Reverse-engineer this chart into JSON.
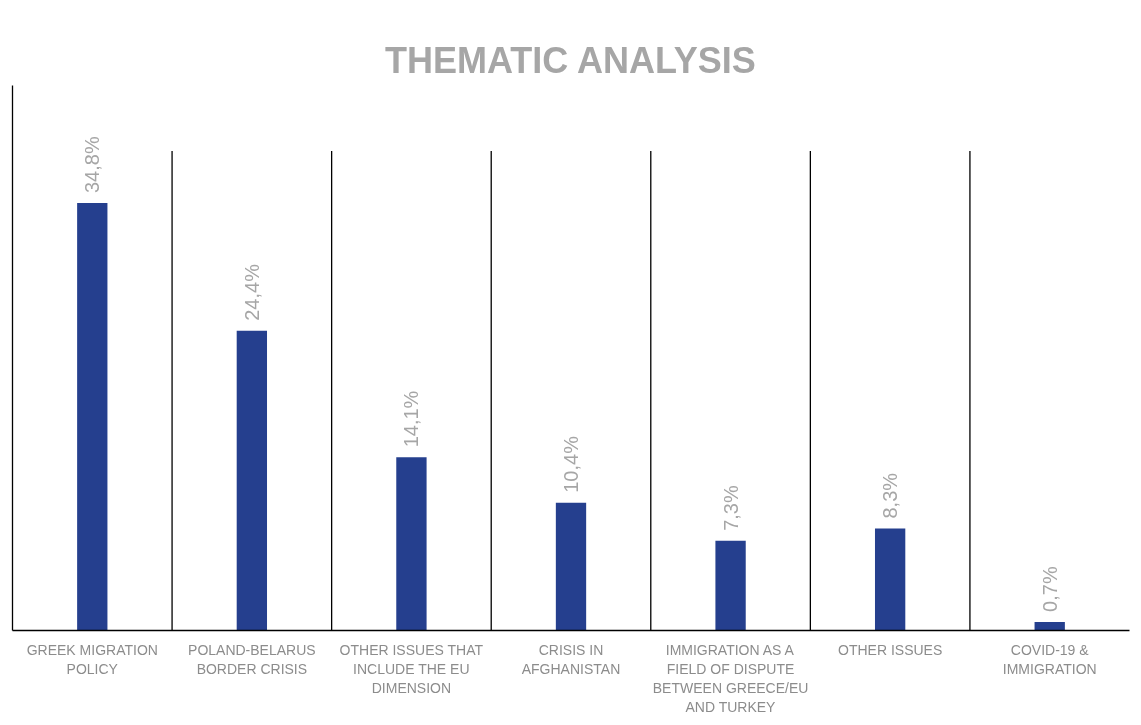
{
  "chart_data": {
    "type": "bar",
    "title": "THEMATIC ANALYSIS",
    "categories": [
      "GREEK MIGRATION POLICY",
      "POLAND-BELARUS BORDER CRISIS",
      "OTHER ISSUES THAT INCLUDE THE EU DIMENSION",
      "CRISIS IN AFGHANISTAN",
      "IMMIGRATION AS A FIELD OF DISPUTE BETWEEN GREECE/EU AND TURKEY",
      "OTHER ISSUES",
      "COVID-19 & IMMIGRATION"
    ],
    "values": [
      34.8,
      24.4,
      14.1,
      10.4,
      7.3,
      8.3,
      0.7
    ],
    "value_labels": [
      "34,8%",
      "24,4%",
      "14,1%",
      "10,4%",
      "7,3%",
      "8,3%",
      "0,7%"
    ],
    "color": "#253f8e",
    "grid": false
  }
}
